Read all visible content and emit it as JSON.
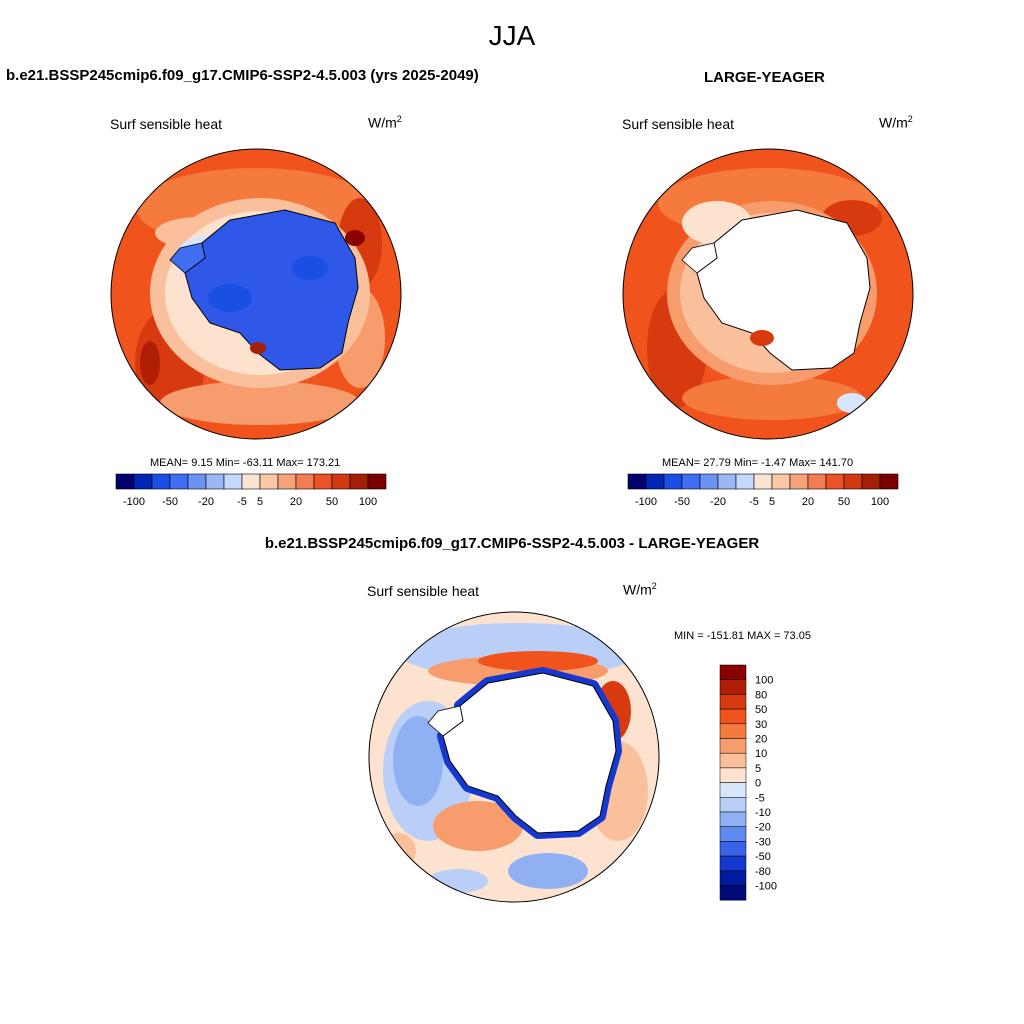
{
  "season": "JJA",
  "colors": {
    "scale": [
      "#00006e",
      "#0026b6",
      "#1a4fe4",
      "#3f6ef0",
      "#6c93f4",
      "#9ab7f7",
      "#c6d8fb",
      "#fbe3d3",
      "#fbc7a6",
      "#f8a27a",
      "#f37c52",
      "#eb5226",
      "#d43a12",
      "#a52008",
      "#7a0000"
    ],
    "ice": "#2f58e8",
    "land": "#ffffff",
    "coast": "#000000"
  },
  "panel1": {
    "title": "b.e21.BSSP245cmip6.f09_g17.CMIP6-SSP2-4.5.003 (yrs 2025-2049)",
    "variable": "Surf sensible heat",
    "units_base": "W/m",
    "units_exp": "2",
    "stats_text": "MEAN=   9.15  Min= -63.11  Max= 173.21",
    "colorbar_labels": [
      "-100",
      "-50",
      "-20",
      "-5",
      "5",
      "20",
      "50",
      "100"
    ]
  },
  "panel2": {
    "title": "LARGE-YEAGER",
    "variable": "Surf sensible heat",
    "units_base": "W/m",
    "units_exp": "2",
    "stats_text": "MEAN=  27.79  Min=  -1.47  Max= 141.70",
    "colorbar_labels": [
      "-100",
      "-50",
      "-20",
      "-5",
      "5",
      "20",
      "50",
      "100"
    ]
  },
  "panel3": {
    "title": "b.e21.BSSP245cmip6.f09_g17.CMIP6-SSP2-4.5.003 - LARGE-YEAGER",
    "variable": "Surf sensible heat",
    "units_base": "W/m",
    "units_exp": "2",
    "stats_text": "MIN = -151.81 MAX =  73.05",
    "colorbar_labels": [
      "100",
      "80",
      "50",
      "30",
      "20",
      "10",
      "5",
      "0",
      "-5",
      "-10",
      "-20",
      "-30",
      "-50",
      "-80",
      "-100"
    ],
    "colorbar_colors": [
      "#8b0000",
      "#b01e05",
      "#d83a10",
      "#f0541c",
      "#f47a3e",
      "#f79c6c",
      "#fac09c",
      "#fde3cf",
      "#d8e6fb",
      "#b9cff8",
      "#8fb1f4",
      "#5f8af0",
      "#3a63ea",
      "#1538d0",
      "#0219a2",
      "#000a78"
    ]
  }
}
